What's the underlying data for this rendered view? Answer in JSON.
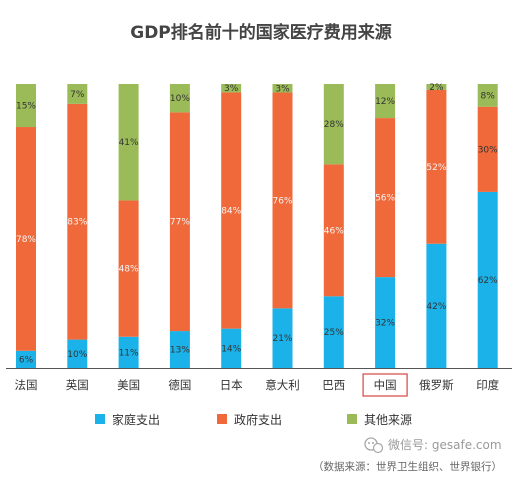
{
  "colors": {
    "household": "#1ab2e8",
    "government": "#f0693a",
    "other": "#9bbb59",
    "highlight_box": "#d9534f",
    "axis": "#555555"
  },
  "watermark": {
    "icon": "wechat-icon",
    "label": "微信号: gesafe.com"
  },
  "source_note": "（数据来源：世界卫生组织、世界银行）",
  "highlight_category": "中国",
  "chart_data": {
    "type": "bar",
    "stacked": true,
    "percent": true,
    "title": "GDP排名前十的国家医疗费用来源",
    "categories": [
      "法国",
      "英国",
      "美国",
      "德国",
      "日本",
      "意大利",
      "巴西",
      "中国",
      "俄罗斯",
      "印度"
    ],
    "series": [
      {
        "name": "家庭支出",
        "values": [
          6,
          10,
          11,
          13,
          14,
          21,
          25,
          32,
          42,
          62
        ]
      },
      {
        "name": "政府支出",
        "values": [
          78,
          83,
          48,
          77,
          84,
          76,
          46,
          56,
          52,
          30
        ]
      },
      {
        "name": "其他来源",
        "values": [
          15,
          7,
          41,
          10,
          3,
          3,
          28,
          12,
          2,
          8
        ]
      }
    ],
    "ylim": [
      0,
      100
    ],
    "grid": false,
    "legend_position": "bottom"
  }
}
